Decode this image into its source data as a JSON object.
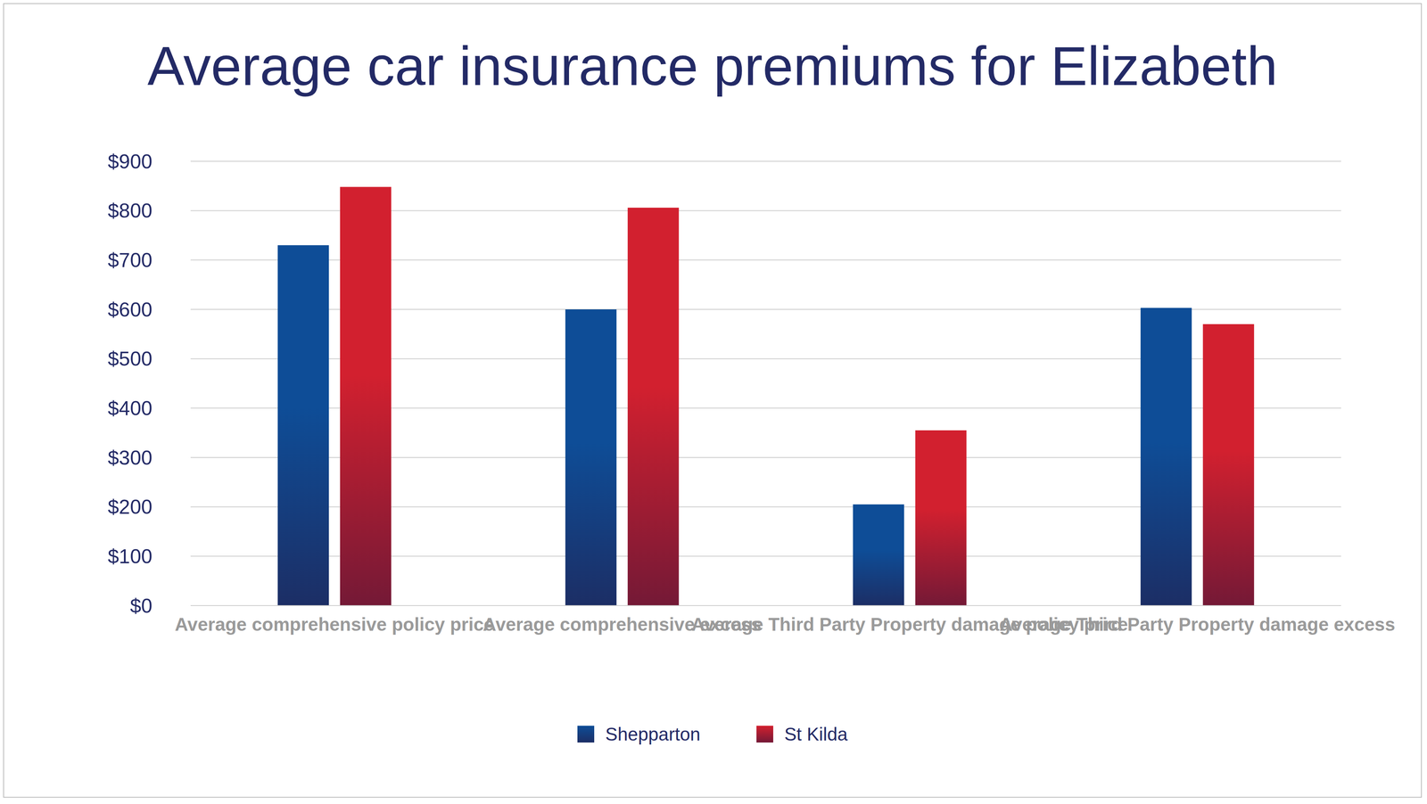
{
  "chart_data": {
    "type": "bar",
    "title": "Average car insurance premiums for Elizabeth",
    "categories": [
      "Average comprehensive policy price",
      "Average comprehensive excess",
      "Average Third Party Property damage policy price",
      "Average Third Party Property damage excess"
    ],
    "series": [
      {
        "name": "Shepparton",
        "color": "#0e4d97",
        "values": [
          730,
          600,
          205,
          603
        ]
      },
      {
        "name": "St Kilda",
        "color": "#d2202f",
        "values": [
          848,
          806,
          355,
          570
        ]
      }
    ],
    "ylim": [
      0,
      900
    ],
    "yticks": [
      {
        "value": 0,
        "label": "$0"
      },
      {
        "value": 100,
        "label": "$100"
      },
      {
        "value": 200,
        "label": "$200"
      },
      {
        "value": 300,
        "label": "$300"
      },
      {
        "value": 400,
        "label": "$400"
      },
      {
        "value": 500,
        "label": "$500"
      },
      {
        "value": 600,
        "label": "$600"
      },
      {
        "value": 700,
        "label": "$700"
      },
      {
        "value": 800,
        "label": "$800"
      },
      {
        "value": 900,
        "label": "$900"
      }
    ],
    "grid": true,
    "legend": "bottom"
  }
}
